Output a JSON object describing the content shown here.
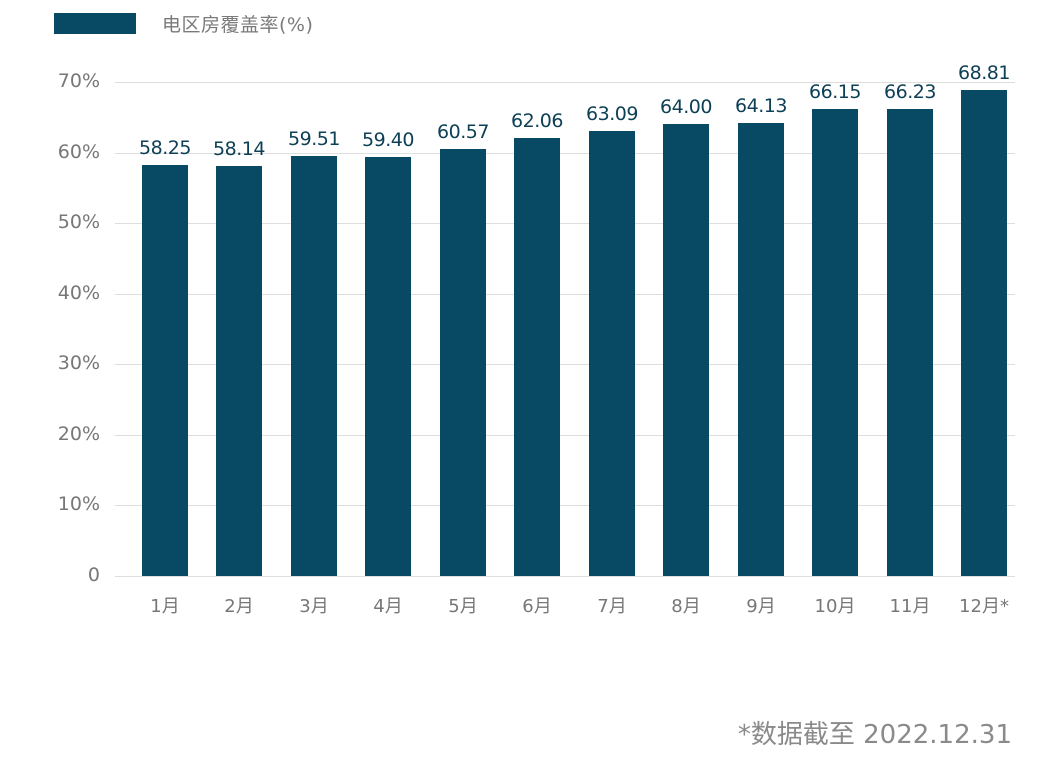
{
  "chart_data": {
    "type": "bar",
    "title": "",
    "legend": [
      "电区房覆盖率(%)"
    ],
    "legend_position": "top-left",
    "xlabel": "",
    "ylabel": "",
    "ylim": [
      0,
      70
    ],
    "grid": true,
    "yticks": [
      "0",
      "10%",
      "20%",
      "30%",
      "40%",
      "50%",
      "60%",
      "70%"
    ],
    "categories": [
      "1月",
      "2月",
      "3月",
      "4月",
      "5月",
      "6月",
      "7月",
      "8月",
      "9月",
      "10月",
      "11月",
      "12月*"
    ],
    "series": [
      {
        "name": "电区房覆盖率(%)",
        "color": "#084a63",
        "values": [
          58.25,
          58.14,
          59.51,
          59.4,
          60.57,
          62.06,
          63.09,
          64.0,
          64.13,
          66.15,
          66.23,
          68.81
        ]
      }
    ],
    "value_labels": [
      "58.25",
      "58.14",
      "59.51",
      "59.40",
      "60.57",
      "62.06",
      "63.09",
      "64.00",
      "64.13",
      "66.15",
      "66.23",
      "68.81"
    ],
    "annotations": [
      "*数据截至 2022.12.31"
    ]
  },
  "legend": {
    "label": "电区房覆盖率(%)",
    "color": "#084a63"
  },
  "footnote": "*数据截至 2022.12.31"
}
